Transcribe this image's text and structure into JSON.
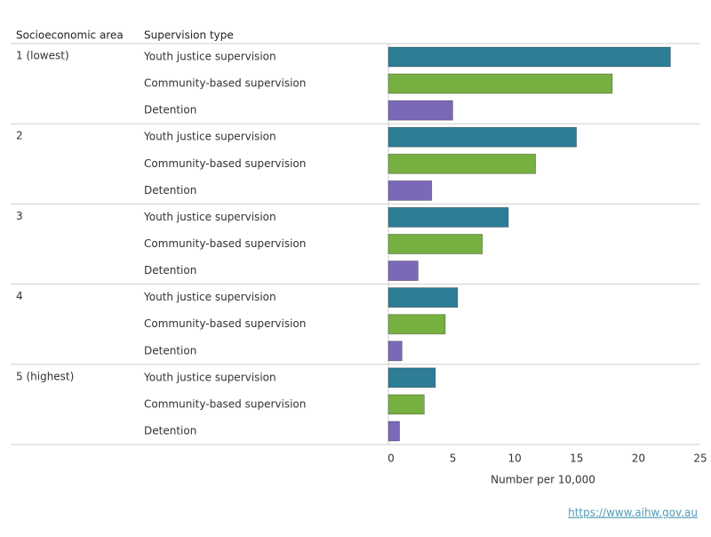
{
  "chart_data": {
    "type": "bar",
    "orientation": "horizontal",
    "category_header": "Socioeconomic area",
    "series_header": "Supervision type",
    "categories": [
      "1 (lowest)",
      "2",
      "3",
      "4",
      "5 (highest)"
    ],
    "series": [
      {
        "name": "Youth justice supervision",
        "color": "#2e7d96",
        "values": [
          22.8,
          15.2,
          9.7,
          5.6,
          3.8
        ]
      },
      {
        "name": "Community-based supervision",
        "color": "#76b041",
        "values": [
          18.1,
          11.9,
          7.6,
          4.6,
          2.9
        ]
      },
      {
        "name": "Detention",
        "color": "#7c68b8",
        "values": [
          5.2,
          3.5,
          2.4,
          1.1,
          0.9
        ]
      }
    ],
    "xlim": [
      0,
      25
    ],
    "xticks": [
      0,
      5,
      10,
      15,
      20,
      25
    ],
    "xlabel": "Number per 10,000",
    "source": "https://www.aihw.gov.au"
  }
}
